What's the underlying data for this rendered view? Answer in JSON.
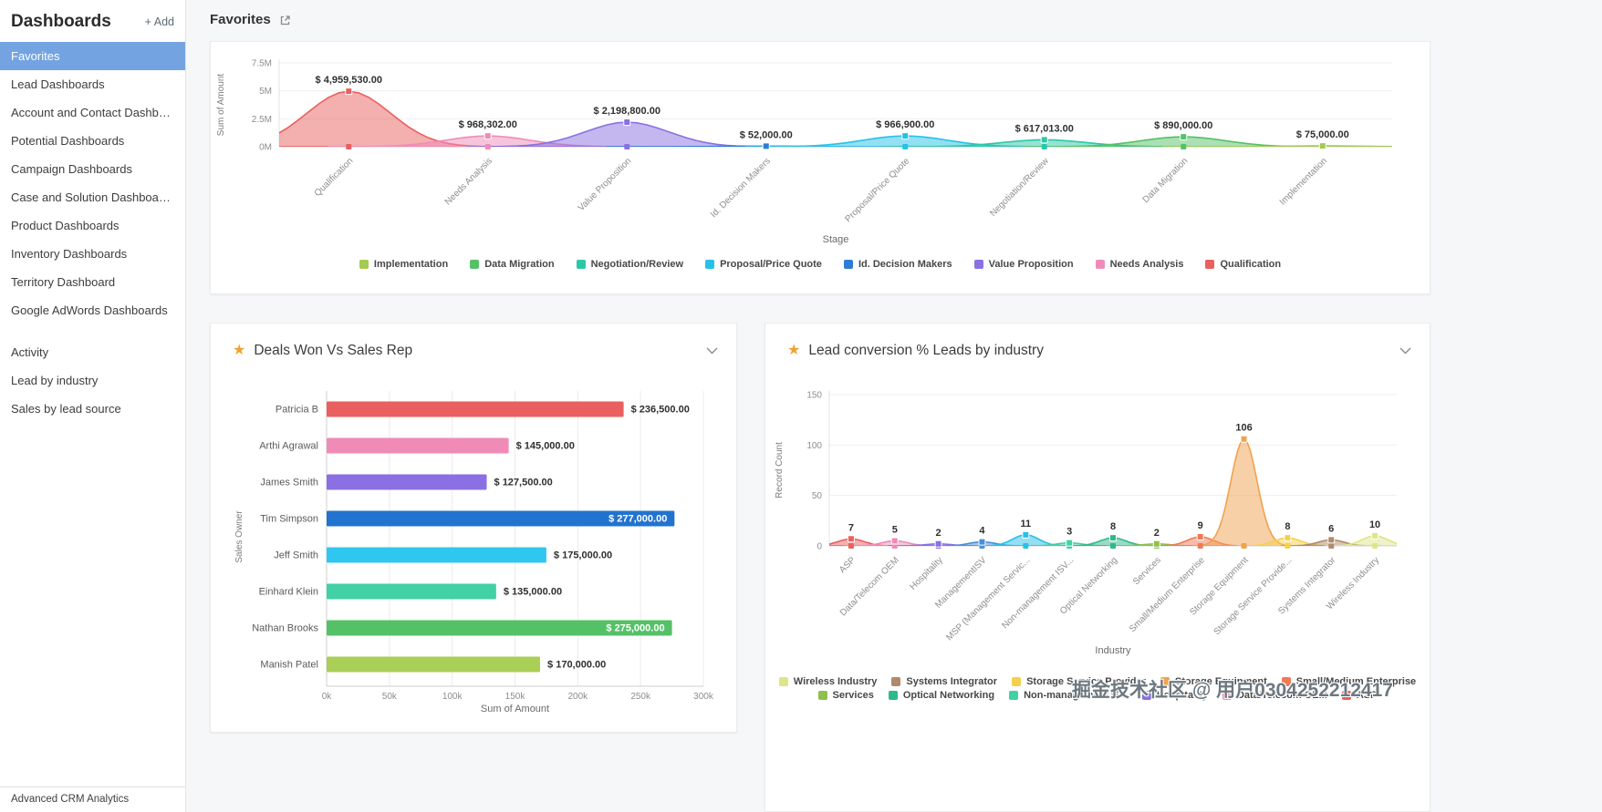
{
  "app": {
    "sidebar_title": "Dashboards",
    "add_button": "+ Add",
    "header_title": "Favorites",
    "footer": "Advanced CRM Analytics",
    "watermark": "掘金技术社区 @ 用户0304252212417"
  },
  "icons": {
    "star": "★"
  },
  "sidebar": {
    "active_index": 0,
    "items": [
      "Favorites",
      "Lead Dashboards",
      "Account and Contact Dashbo...",
      "Potential Dashboards",
      "Campaign Dashboards",
      "Case and Solution Dashboards",
      "Product Dashboards",
      "Inventory Dashboards",
      "Territory Dashboard",
      "Google AdWords Dashboards"
    ],
    "secondary_items": [
      "Activity",
      "Lead by industry",
      "Sales by lead source"
    ]
  },
  "chart_data": [
    {
      "id": "stage-amount",
      "type": "area",
      "title": "",
      "xlabel": "Stage",
      "ylabel": "Sum of Amount",
      "ylim": [
        0,
        7500000
      ],
      "yticks": [
        {
          "v": 0,
          "label": "0M"
        },
        {
          "v": 2500000,
          "label": "2.5M"
        },
        {
          "v": 5000000,
          "label": "5M"
        },
        {
          "v": 7500000,
          "label": "7.5M"
        }
      ],
      "categories": [
        "Qualification",
        "Needs Analysis",
        "Value Proposition",
        "Id. Decision Makers",
        "Proposal/Price Quote",
        "Negotiation/Review",
        "Data Migration",
        "Implementation"
      ],
      "values": [
        4959530,
        968302,
        2198800,
        52000,
        966900,
        617013,
        890000,
        75000
      ],
      "value_labels": [
        "$ 4,959,530.00",
        "$ 968,302.00",
        "$ 2,198,800.00",
        "$ 52,000.00",
        "$ 966,900.00",
        "$ 617,013.00",
        "$ 890,000.00",
        "$ 75,000.00"
      ],
      "colors": [
        "#ea5f5f",
        "#f08bb7",
        "#8a70e2",
        "#2d7dd6",
        "#27c0e8",
        "#2cc7a7",
        "#55c167",
        "#a3ca52"
      ],
      "legend": [
        {
          "label": "Implementation",
          "color": "#a3ca52"
        },
        {
          "label": "Data Migration",
          "color": "#55c167"
        },
        {
          "label": "Negotiation/Review",
          "color": "#2cc7a7"
        },
        {
          "label": "Proposal/Price Quote",
          "color": "#27c0e8"
        },
        {
          "label": "Id. Decision Makers",
          "color": "#2d7dd6"
        },
        {
          "label": "Value Proposition",
          "color": "#8a70e2"
        },
        {
          "label": "Needs Analysis",
          "color": "#f08bb7"
        },
        {
          "label": "Qualification",
          "color": "#ea5f5f"
        }
      ]
    },
    {
      "id": "deals-won-vs-sales-rep",
      "type": "bar",
      "orientation": "horizontal",
      "title": "Deals Won Vs Sales Rep",
      "starred": true,
      "xlabel": "Sum of Amount",
      "ylabel": "Sales Owner",
      "xlim": [
        0,
        300000
      ],
      "xticks": [
        {
          "v": 0,
          "label": "0k"
        },
        {
          "v": 50000,
          "label": "50k"
        },
        {
          "v": 100000,
          "label": "100k"
        },
        {
          "v": 150000,
          "label": "150k"
        },
        {
          "v": 200000,
          "label": "200k"
        },
        {
          "v": 250000,
          "label": "250k"
        },
        {
          "v": 300000,
          "label": "300k"
        }
      ],
      "categories": [
        "Patricia B",
        "Arthi Agrawal",
        "James Smith",
        "Tim Simpson",
        "Jeff Smith",
        "Einhard Klein",
        "Nathan Brooks",
        "Manish Patel"
      ],
      "values": [
        236500,
        145000,
        127500,
        277000,
        175000,
        135000,
        275000,
        170000
      ],
      "value_labels": [
        "$ 236,500.00",
        "$ 145,000.00",
        "$ 127,500.00",
        "$ 277,000.00",
        "$ 175,000.00",
        "$ 135,000.00",
        "$ 275,000.00",
        "$ 170,000.00"
      ],
      "colors": [
        "#ea5f5f",
        "#f08bb7",
        "#8a70e2",
        "#2273cf",
        "#2fc7f0",
        "#41d1a5",
        "#55c167",
        "#a9cf56"
      ]
    },
    {
      "id": "lead-conversion-by-industry",
      "type": "area",
      "title": "Lead conversion % Leads by industry",
      "starred": true,
      "xlabel": "Industry",
      "ylabel": "Record Count",
      "ylim": [
        0,
        150
      ],
      "yticks": [
        {
          "v": 0,
          "label": "0"
        },
        {
          "v": 50,
          "label": "50"
        },
        {
          "v": 100,
          "label": "100"
        },
        {
          "v": 150,
          "label": "150"
        }
      ],
      "categories": [
        "ASP",
        "Data/Telecom OEM",
        "Hospitality",
        "ManagementISV",
        "MSP (Management Servic...",
        "Non-management ISV...",
        "Optical Networking",
        "Services",
        "Small/Medium Enterprise",
        "Storage Equipment",
        "Storage Service Provide...",
        "Systems Integrator",
        "Wireless Industry"
      ],
      "values": [
        7,
        5,
        2,
        4,
        11,
        3,
        8,
        2,
        9,
        106,
        8,
        6,
        10
      ],
      "value_labels": [
        "7",
        "5",
        "2",
        "4",
        "11",
        "3",
        "8",
        "2",
        "9",
        "106",
        "8",
        "6",
        "10"
      ],
      "colors": [
        "#ea5f5f",
        "#f08bb7",
        "#8a70e2",
        "#4a90d9",
        "#27c0e8",
        "#41d1a5",
        "#2eb98a",
        "#8fbf4d",
        "#f07a56",
        "#f0a24f",
        "#f5d04c",
        "#b08a6a",
        "#dde58a"
      ],
      "legend_rows": [
        [
          {
            "label": "Wireless Industry",
            "color": "#dde58a"
          },
          {
            "label": "Systems Integrator",
            "color": "#b08a6a"
          },
          {
            "label": "Storage Service Provider",
            "color": "#f5d04c"
          },
          {
            "label": "Storage Equipment",
            "color": "#f0a24f"
          },
          {
            "label": "Small/Medium Enterprise",
            "color": "#f07a56"
          }
        ],
        [
          {
            "label": "Services",
            "color": "#8fbf4d"
          },
          {
            "label": "Optical Networking",
            "color": "#2eb98a"
          },
          {
            "label": "Non-management ISV",
            "color": "#41d1a5"
          },
          {
            "label": "Hospitality",
            "color": "#8a70e2"
          },
          {
            "label": "Data/Telecom OEM",
            "color": "#f08bb7"
          },
          {
            "label": "ASP",
            "color": "#ea5f5f"
          }
        ]
      ]
    }
  ]
}
